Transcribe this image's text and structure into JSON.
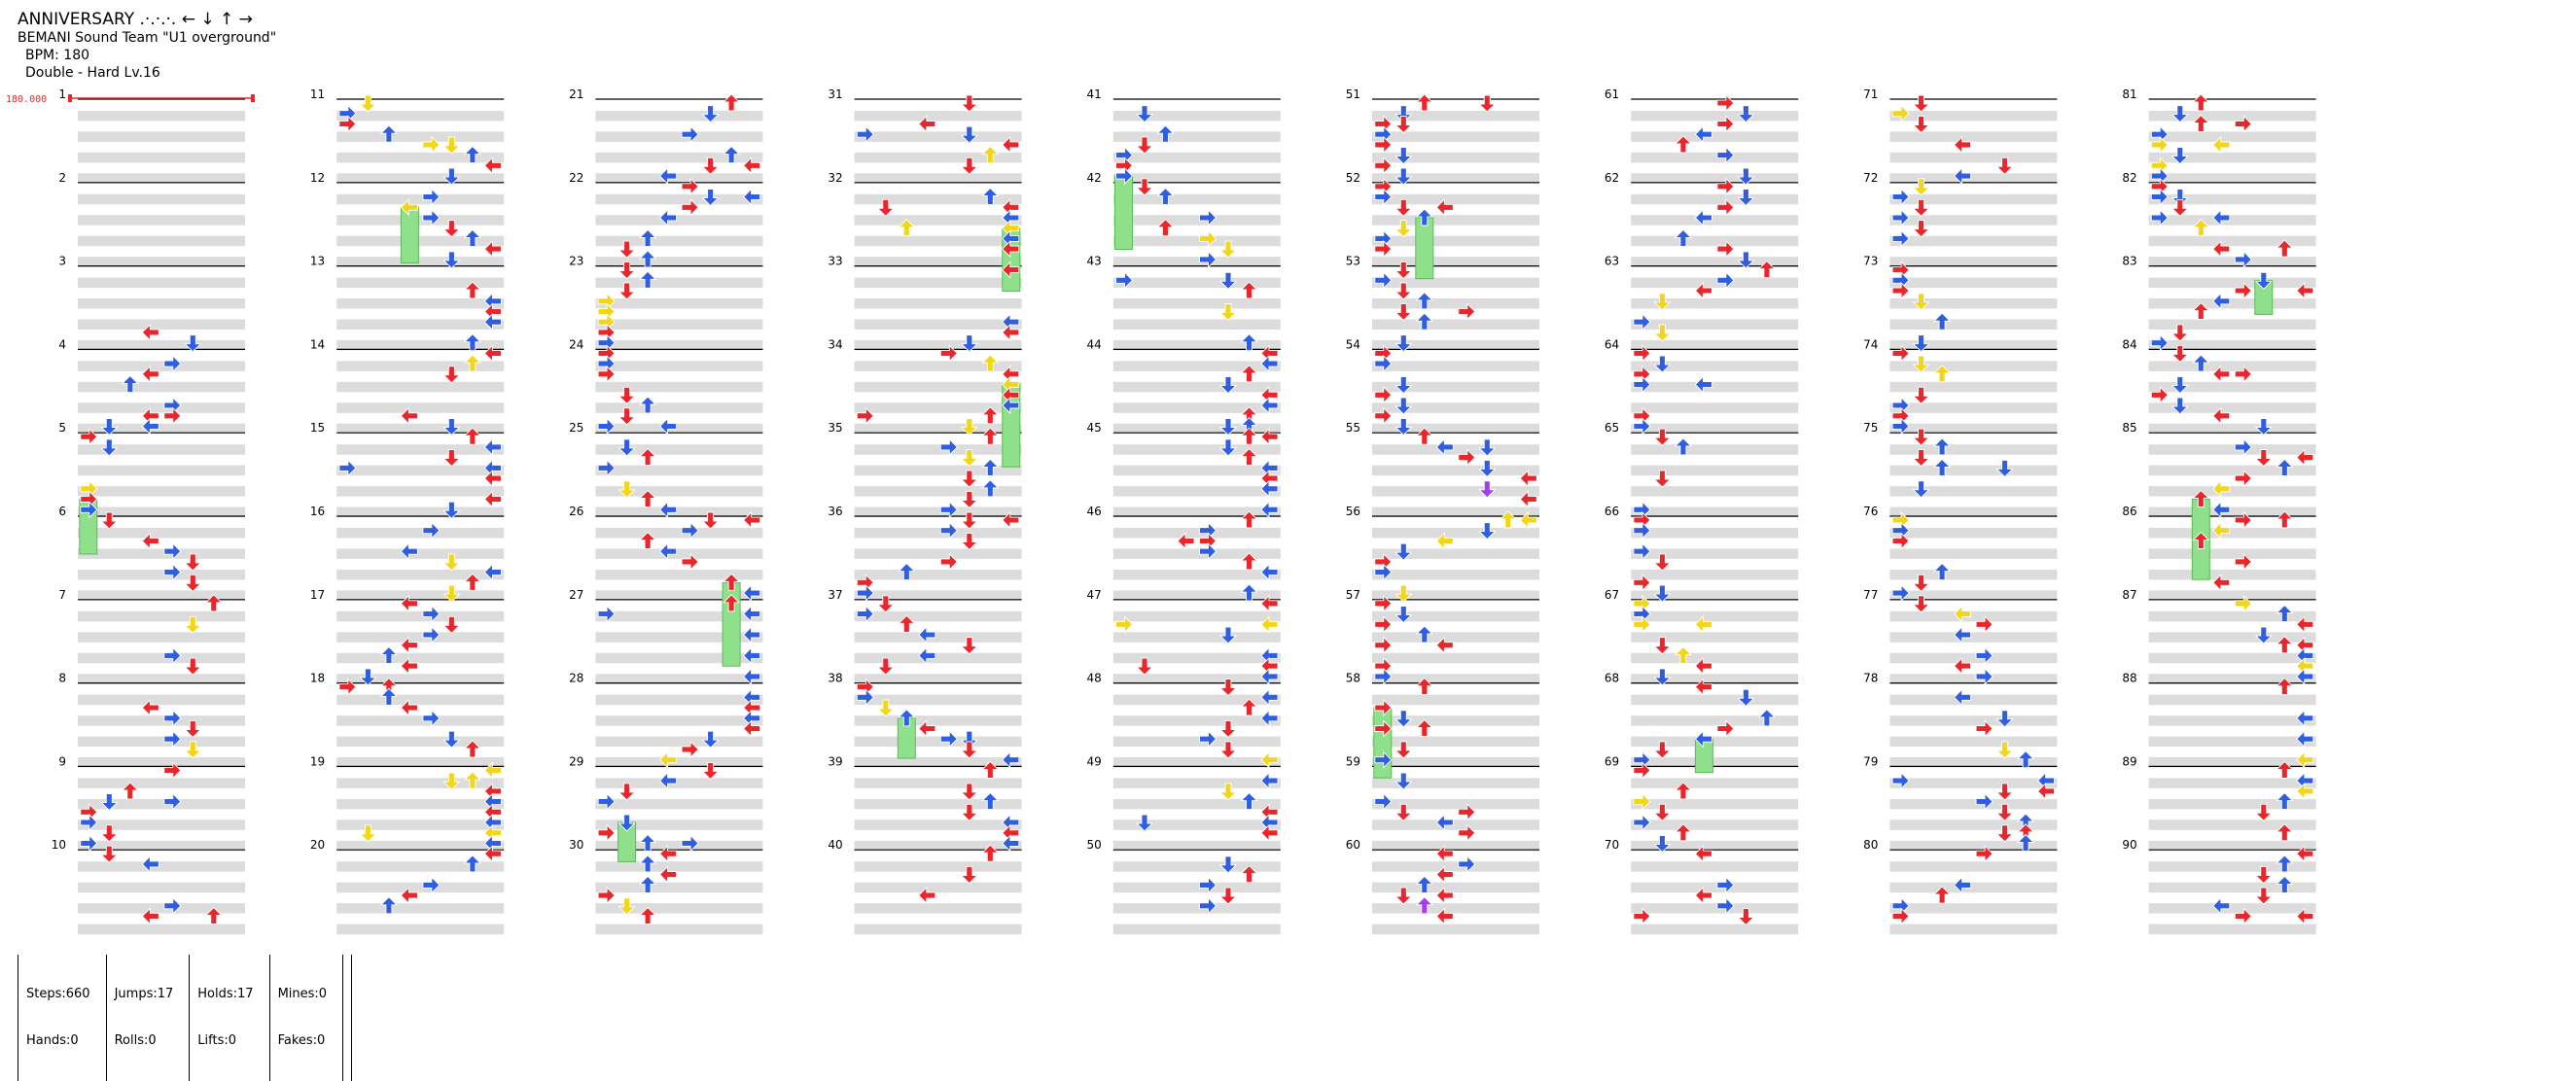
{
  "header": {
    "title": "ANNIVERSARY .·.·.·. ← ↓ ↑ →",
    "artist": "BEMANI Sound Team \"U1 overground\"",
    "bpm": "BPM: 180",
    "difficulty": "Double - Hard Lv.16"
  },
  "bpm_marker": {
    "label": "180.000",
    "color": "#e8262b"
  },
  "measures": {
    "count": 90,
    "labels": [
      "1",
      "2",
      "3",
      "4",
      "5",
      "6",
      "7",
      "8",
      "9",
      "10",
      "11",
      "12",
      "13",
      "14",
      "15",
      "16",
      "17",
      "18",
      "19",
      "20",
      "21",
      "22",
      "23",
      "24",
      "25",
      "26",
      "27",
      "28",
      "29",
      "30",
      "31",
      "32",
      "33",
      "34",
      "35",
      "36",
      "37",
      "38",
      "39",
      "40",
      "41",
      "42",
      "43",
      "44",
      "45",
      "46",
      "47",
      "48",
      "49",
      "50",
      "51",
      "52",
      "53",
      "54",
      "55",
      "56",
      "57",
      "58",
      "59",
      "60",
      "61",
      "62",
      "63",
      "64",
      "65",
      "66",
      "67",
      "68",
      "69",
      "70",
      "71",
      "72",
      "73",
      "74",
      "75",
      "76",
      "77",
      "78",
      "79",
      "80",
      "81",
      "82",
      "83",
      "84",
      "85",
      "86",
      "87",
      "88",
      "89",
      "90"
    ],
    "per_column": 10,
    "columns": 9
  },
  "colors": {
    "quarter": "#e8262b",
    "eighth": "#2f5ee0",
    "sixteenth": "#f2d61c",
    "twelfth": "#a43ee8",
    "hold": "#8fe08a",
    "band": "#dcdcdc"
  },
  "stats": {
    "steps": "Steps:660",
    "hands": "Hands:0",
    "jumps": "Jumps:17",
    "rolls": "Rolls:0",
    "holds": "Holds:17",
    "lifts": "Lifts:0",
    "mines": "Mines:0",
    "fakes": "Fakes:0"
  }
}
